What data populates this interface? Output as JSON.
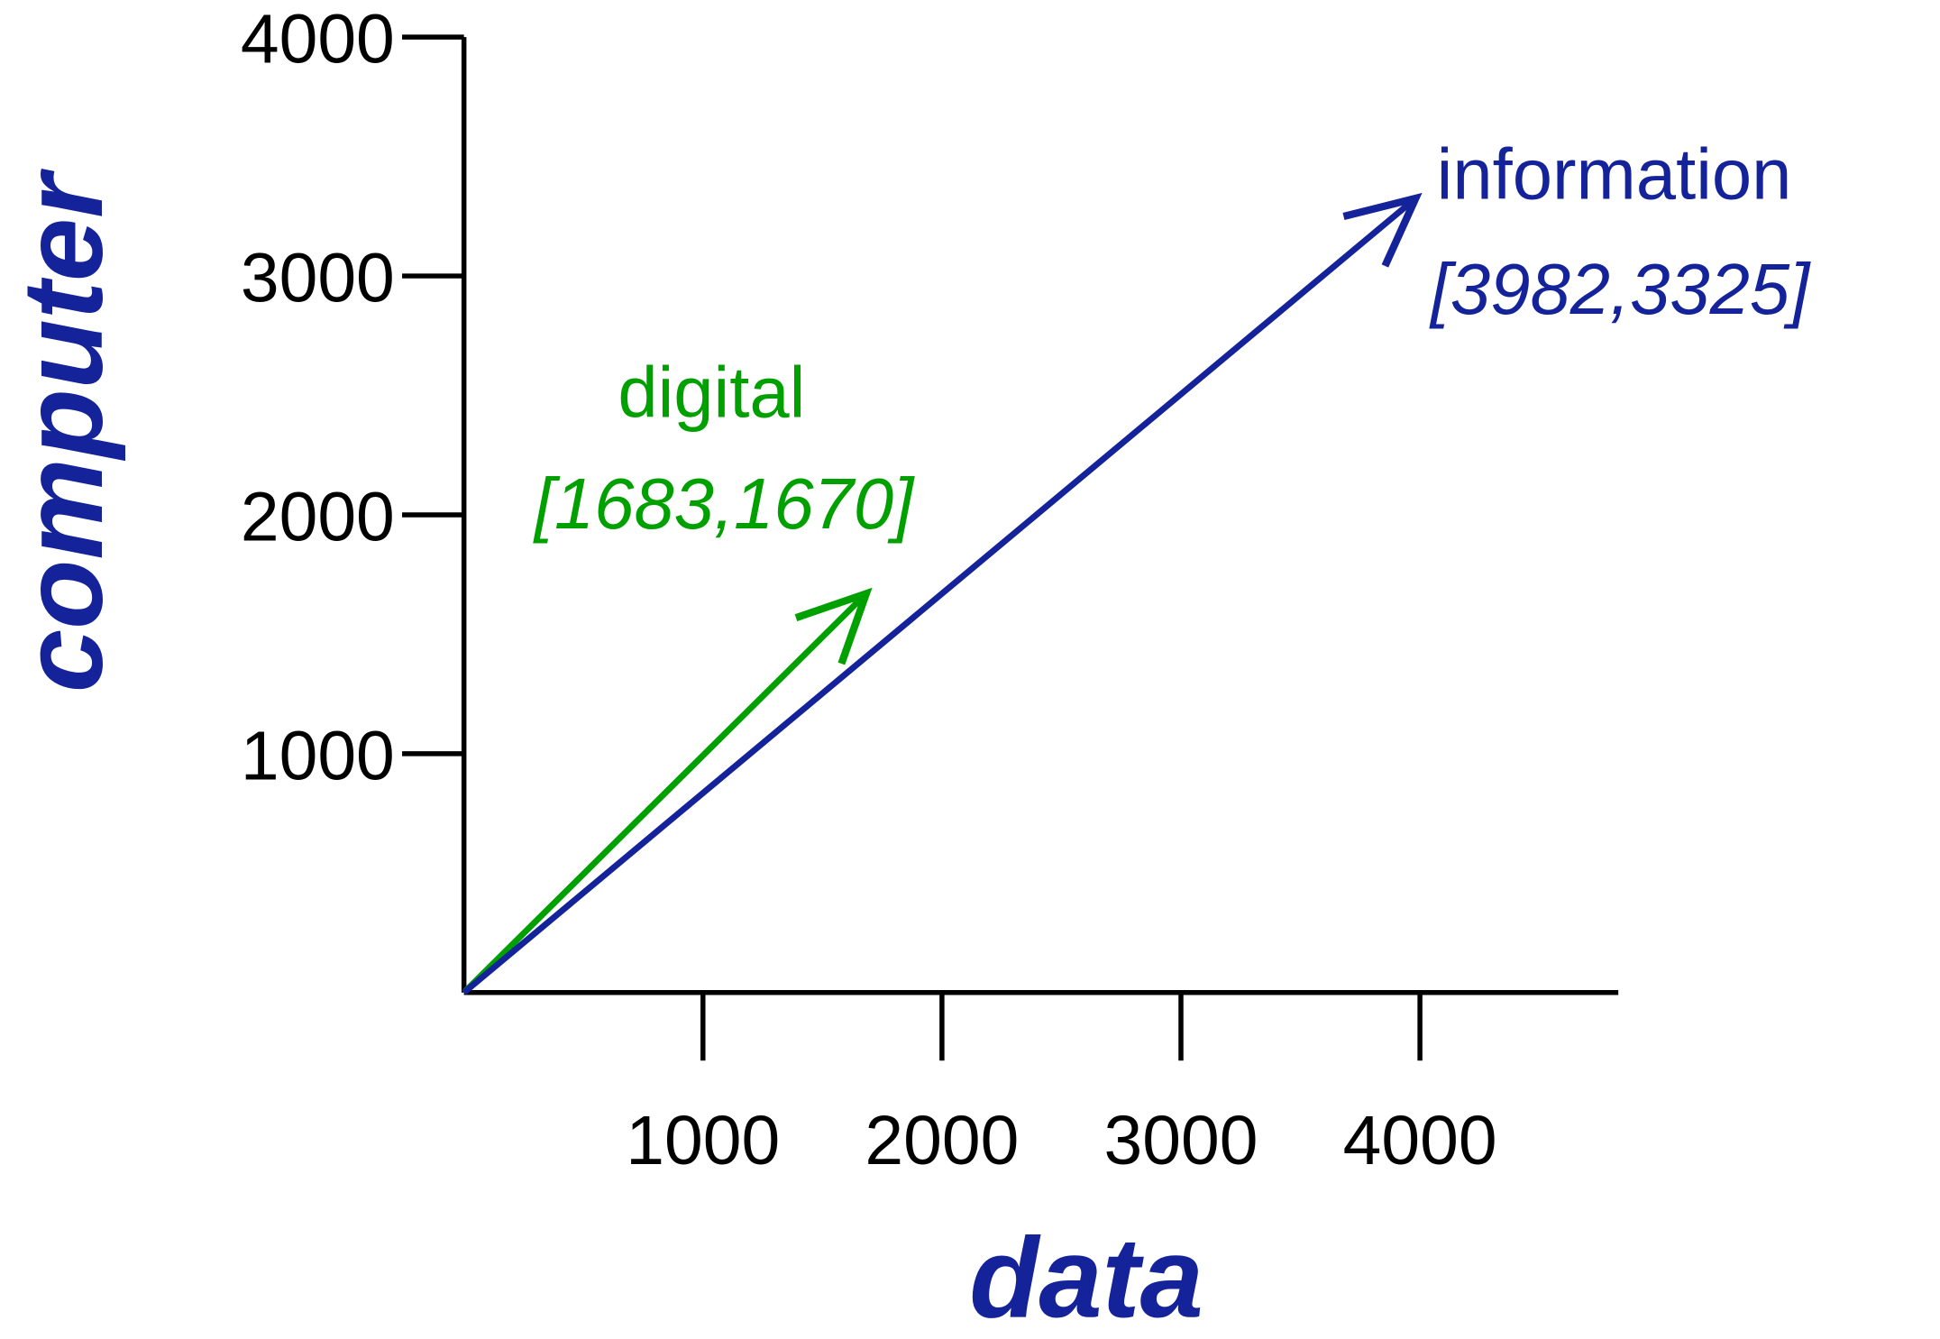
{
  "chart_data": {
    "type": "vector",
    "xlabel": "data",
    "ylabel": "computer",
    "xlim": [
      0,
      4830
    ],
    "ylim": [
      0,
      4000
    ],
    "xticks": [
      1000,
      2000,
      3000,
      4000
    ],
    "yticks": [
      1000,
      2000,
      3000,
      4000
    ],
    "series": [
      {
        "name": "digital",
        "color": "#00a000",
        "x": 1683,
        "y": 1670,
        "value_label": "[1683,1670]"
      },
      {
        "name": "information",
        "color": "#14239a",
        "x": 3982,
        "y": 3325,
        "value_label": "[3982,3325]"
      }
    ]
  }
}
